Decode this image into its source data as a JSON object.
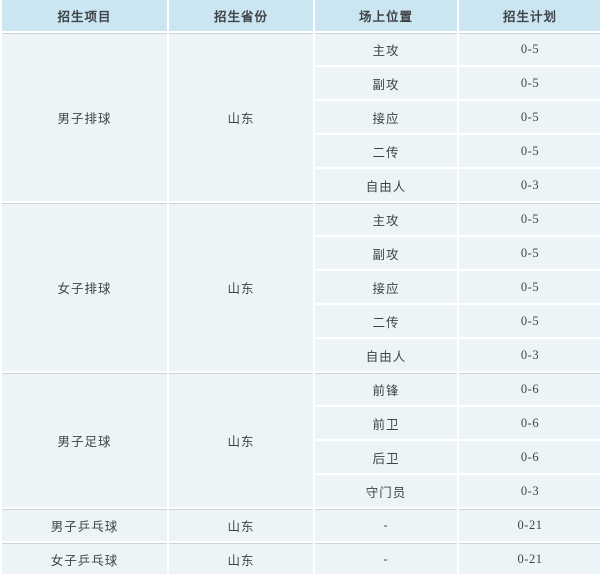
{
  "colors": {
    "header_bg": "#cbe6f1",
    "row_bg": "#edf4f7",
    "text": "#3f4347",
    "row_divider": "#ffffff",
    "section_divider_line": "#c9d3d8"
  },
  "table": {
    "headers": [
      "招生项目",
      "招生省份",
      "场上位置",
      "招生计划"
    ],
    "sections": [
      {
        "project": "男子排球",
        "province": "山东",
        "rows": [
          {
            "position": "主攻",
            "plan": "0-5"
          },
          {
            "position": "副攻",
            "plan": "0-5"
          },
          {
            "position": "接应",
            "plan": "0-5"
          },
          {
            "position": "二传",
            "plan": "0-5"
          },
          {
            "position": "自由人",
            "plan": "0-3"
          }
        ]
      },
      {
        "project": "女子排球",
        "province": "山东",
        "rows": [
          {
            "position": "主攻",
            "plan": "0-5"
          },
          {
            "position": "副攻",
            "plan": "0-5"
          },
          {
            "position": "接应",
            "plan": "0-5"
          },
          {
            "position": "二传",
            "plan": "0-5"
          },
          {
            "position": "自由人",
            "plan": "0-3"
          }
        ]
      },
      {
        "project": "男子足球",
        "province": "山东",
        "rows": [
          {
            "position": "前锋",
            "plan": "0-6"
          },
          {
            "position": "前卫",
            "plan": "0-6"
          },
          {
            "position": "后卫",
            "plan": "0-6"
          },
          {
            "position": "守门员",
            "plan": "0-3"
          }
        ]
      },
      {
        "project": "男子乒乓球",
        "province": "山东",
        "rows": [
          {
            "position": "-",
            "plan": "0-21"
          }
        ]
      },
      {
        "project": "女子乒乓球",
        "province": "山东",
        "rows": [
          {
            "position": "-",
            "plan": "0-21"
          }
        ]
      }
    ]
  }
}
